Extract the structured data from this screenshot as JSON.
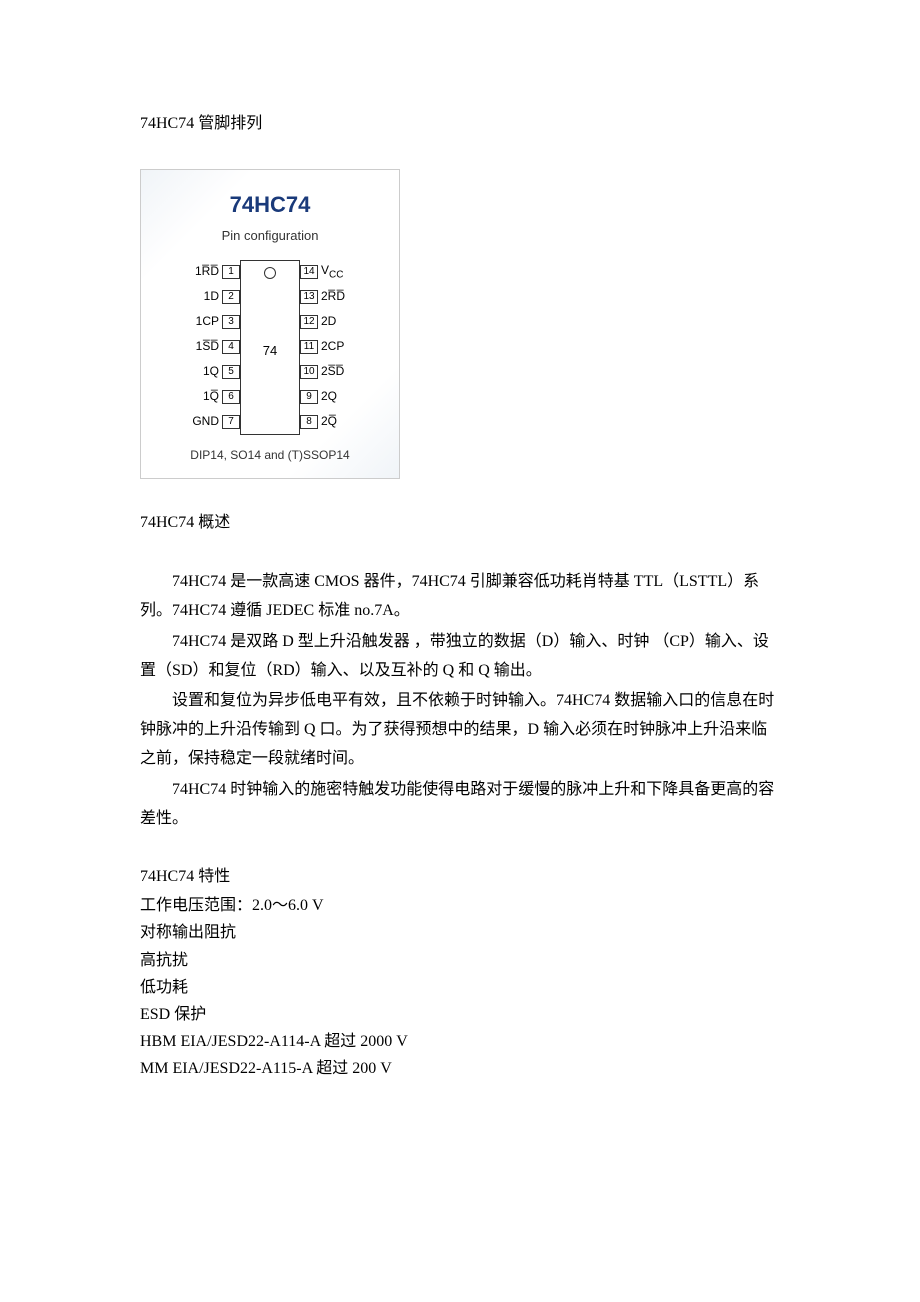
{
  "pinout_title": "74HC74 管脚排列",
  "diagram": {
    "title": "74HC74",
    "subtitle": "Pin configuration",
    "chip_label": "74",
    "footer": "DIP14, SO14 and (T)SSOP14",
    "left_pins": [
      {
        "num": "1",
        "label": "1R̅D̅"
      },
      {
        "num": "2",
        "label": "1D"
      },
      {
        "num": "3",
        "label": "1CP"
      },
      {
        "num": "4",
        "label": "1S̅D̅"
      },
      {
        "num": "5",
        "label": "1Q"
      },
      {
        "num": "6",
        "label": "1Q̅"
      },
      {
        "num": "7",
        "label": "GND"
      }
    ],
    "right_pins": [
      {
        "num": "14",
        "label": "V_CC"
      },
      {
        "num": "13",
        "label": "2R̅D̅"
      },
      {
        "num": "12",
        "label": "2D"
      },
      {
        "num": "11",
        "label": "2CP"
      },
      {
        "num": "10",
        "label": "2S̅D̅"
      },
      {
        "num": "9",
        "label": "2Q"
      },
      {
        "num": "8",
        "label": "2Q̅"
      }
    ]
  },
  "overview_title": "74HC74 概述",
  "overview_p1": "74HC74 是一款高速 CMOS 器件，74HC74 引脚兼容低功耗肖特基 TTL（LSTTL）系列。74HC74 遵循 JEDEC 标准 no.7A。",
  "overview_p2": "74HC74 是双路 D 型上升沿触发器 ，带独立的数据（D）输入、时钟 （CP）输入、设置（SD）和复位（RD）输入、以及互补的 Q 和 Q 输出。",
  "overview_p3": "设置和复位为异步低电平有效，且不依赖于时钟输入。74HC74 数据输入口的信息在时钟脉冲的上升沿传输到 Q 口。为了获得预想中的结果，D 输入必须在时钟脉冲上升沿来临之前，保持稳定一段就绪时间。",
  "overview_p4": "74HC74 时钟输入的施密特触发功能使得电路对于缓慢的脉冲上升和下降具备更高的容差性。",
  "features_title": "74HC74 特性",
  "features": [
    "工作电压范围：2.0～6.0 V",
    "对称输出阻抗",
    "高抗扰",
    "低功耗",
    "ESD 保护",
    "HBM EIA/JESD22-A114-A 超过 2000 V",
    "MM EIA/JESD22-A115-A 超过 200 V"
  ]
}
